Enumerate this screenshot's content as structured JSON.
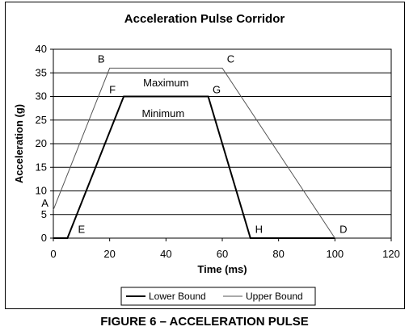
{
  "figure_caption": "FIGURE 6 – ACCELERATION PULSE",
  "chart_data": {
    "type": "line",
    "title": "Acceleration Pulse Corridor",
    "xlabel": "Time (ms)",
    "ylabel": "Acceleration (g)",
    "xlim": [
      0,
      120
    ],
    "ylim": [
      0,
      40
    ],
    "xticks": [
      0,
      20,
      40,
      60,
      80,
      100,
      120
    ],
    "yticks": [
      0,
      5,
      10,
      15,
      20,
      25,
      30,
      35,
      40
    ],
    "grid": "horizontal",
    "legend_position": "bottom",
    "series": [
      {
        "name": "Lower Bound",
        "color": "#000000",
        "style": "solid-thick",
        "x": [
          0,
          5,
          25,
          55,
          70,
          100
        ],
        "y": [
          0,
          0,
          30,
          30,
          0,
          0
        ]
      },
      {
        "name": "Upper Bound",
        "color": "#555555",
        "style": "solid-thin",
        "x": [
          0,
          20,
          60,
          100
        ],
        "y": [
          6,
          36,
          36,
          0
        ]
      }
    ],
    "annotations": [
      {
        "text": "A",
        "x": -3,
        "y": 7.5
      },
      {
        "text": "B",
        "x": 17,
        "y": 38
      },
      {
        "text": "C",
        "x": 63,
        "y": 38
      },
      {
        "text": "D",
        "x": 103,
        "y": 2
      },
      {
        "text": "E",
        "x": 10,
        "y": 2
      },
      {
        "text": "F",
        "x": 21,
        "y": 31.5
      },
      {
        "text": "G",
        "x": 58,
        "y": 31.5
      },
      {
        "text": "H",
        "x": 73,
        "y": 2
      },
      {
        "text": "Maximum",
        "x": 40,
        "y": 33
      },
      {
        "text": "Minimum",
        "x": 39,
        "y": 26.5
      }
    ]
  }
}
